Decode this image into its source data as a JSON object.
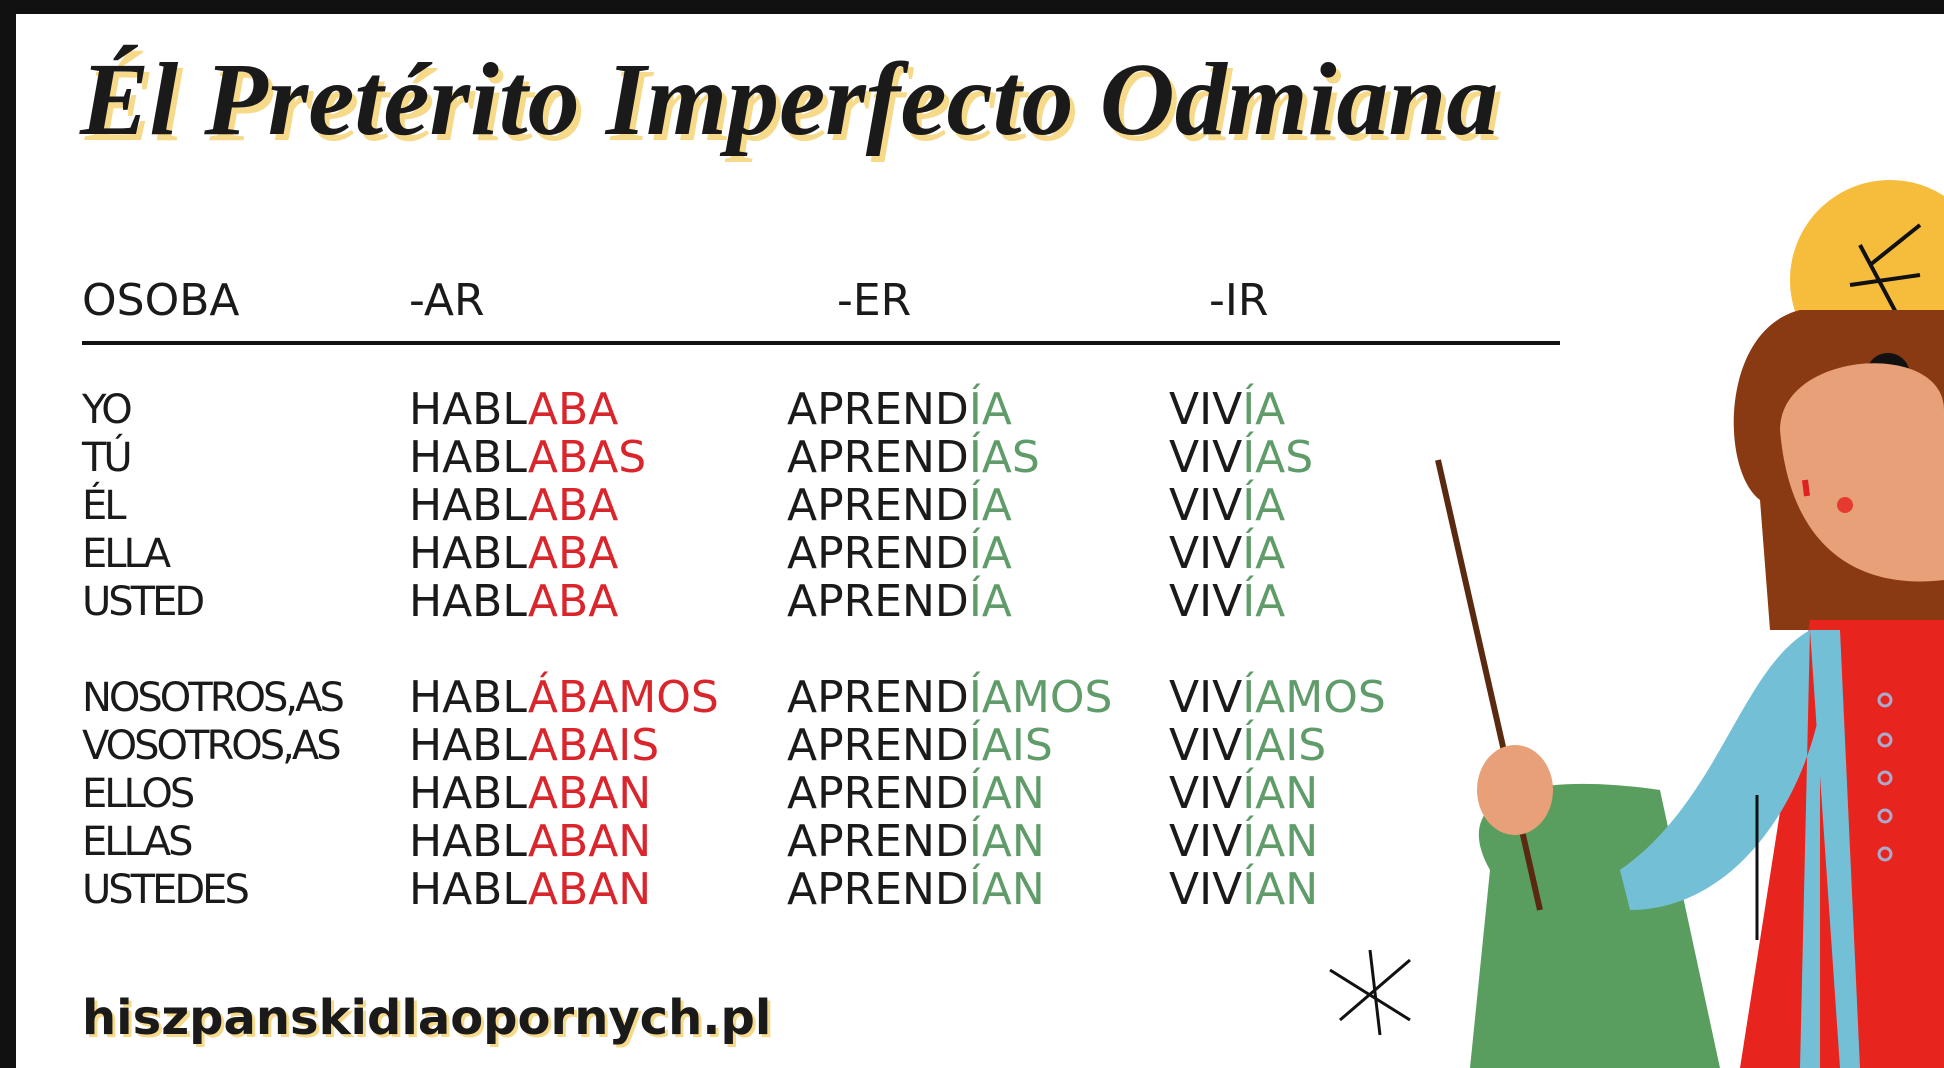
{
  "title": "Él Pretérito Imperfecto Odmiana",
  "table": {
    "headers": [
      "OSOBA",
      "-AR",
      "-ER",
      "-IR"
    ],
    "groups": [
      [
        {
          "person": "YO",
          "ar": [
            "HABL",
            "ABA"
          ],
          "er": [
            "APREND",
            "ÍA"
          ],
          "ir": [
            "VIV",
            "ÍA"
          ]
        },
        {
          "person": "TÚ",
          "ar": [
            "HABL",
            "ABAS"
          ],
          "er": [
            "APREND",
            "ÍAS"
          ],
          "ir": [
            "VIV",
            "ÍAS"
          ]
        },
        {
          "person": "ÉL",
          "ar": [
            "HABL",
            "ABA"
          ],
          "er": [
            "APREND",
            "ÍA"
          ],
          "ir": [
            "VIV",
            "ÍA"
          ]
        },
        {
          "person": "ELLA",
          "ar": [
            "HABL",
            "ABA"
          ],
          "er": [
            "APREND",
            "ÍA"
          ],
          "ir": [
            "VIV",
            "ÍA"
          ]
        },
        {
          "person": "USTED",
          "ar": [
            "HABL",
            "ABA"
          ],
          "er": [
            "APREND",
            "ÍA"
          ],
          "ir": [
            "VIV",
            "ÍA"
          ]
        }
      ],
      [
        {
          "person": "NOSOTROS,AS",
          "ar": [
            "HABL",
            "ÁBAMOS"
          ],
          "er": [
            "APREND",
            "ÍAMOS"
          ],
          "ir": [
            "VIV",
            "ÍAMOS"
          ]
        },
        {
          "person": "VOSOTROS,AS",
          "ar": [
            "HABL",
            "ABAIS"
          ],
          "er": [
            "APREND",
            "ÍAIS"
          ],
          "ir": [
            "VIV",
            "ÍAIS"
          ]
        },
        {
          "person": "ELLOS",
          "ar": [
            "HABL",
            "ABAN"
          ],
          "er": [
            "APREND",
            "ÍAN"
          ],
          "ir": [
            "VIV",
            "ÍAN"
          ]
        },
        {
          "person": "ELLAS",
          "ar": [
            "HABL",
            "ABAN"
          ],
          "er": [
            "APREND",
            "ÍAN"
          ],
          "ir": [
            "VIV",
            "ÍAN"
          ]
        },
        {
          "person": "USTEDES",
          "ar": [
            "HABL",
            "ABAN"
          ],
          "er": [
            "APREND",
            "ÍAN"
          ],
          "ir": [
            "VIV",
            "ÍAN"
          ]
        }
      ]
    ]
  },
  "footer": "hiszpanskidlaopornych.pl"
}
